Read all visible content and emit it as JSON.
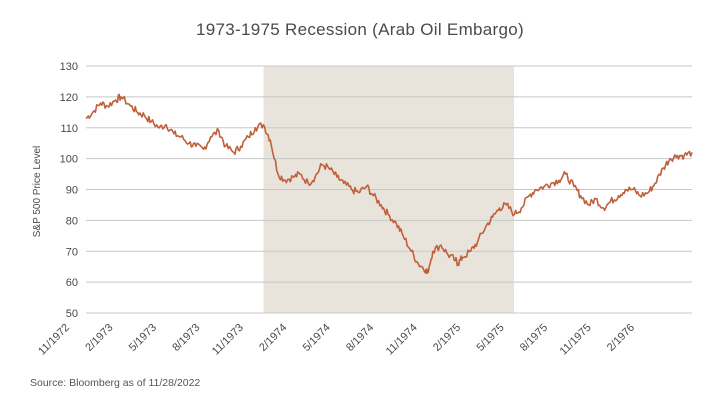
{
  "chart_data": {
    "type": "line",
    "title": "1973-1975 Recession (Arab Oil Embargo)",
    "ylabel": "S&P 500 Price Level",
    "xlabel": "",
    "source": "Source: Bloomberg as of 11/28/2022",
    "ylim": [
      50,
      130
    ],
    "y_ticks": [
      "130",
      "120",
      "110",
      "100",
      "90",
      "80",
      "70",
      "60",
      "50"
    ],
    "x_ticks": [
      "11/1972",
      "2/1973",
      "5/1973",
      "8/1973",
      "11/1973",
      "2/1974",
      "5/1974",
      "8/1974",
      "11/1974",
      "2/1975",
      "5/1975",
      "8/1975",
      "11/1975",
      "2/1976"
    ],
    "x_range": [
      "1972-11-01",
      "1976-03-31"
    ],
    "recession_shading": {
      "start": "1973-11-01",
      "end": "1975-03-31"
    },
    "grid": "horizontal",
    "line_color": "#c0603a",
    "shading_color": "#e8e4dc",
    "series": [
      {
        "x": [
          "1972-11-01",
          "1972-11-15",
          "1972-12-01",
          "1972-12-15",
          "1973-01-01",
          "1973-01-12",
          "1973-02-01",
          "1973-02-15",
          "1973-03-01",
          "1973-03-15",
          "1973-04-01",
          "1973-04-15",
          "1973-05-01",
          "1973-05-15",
          "1973-06-01",
          "1973-06-15",
          "1973-07-01",
          "1973-07-15",
          "1973-08-01",
          "1973-08-15",
          "1973-09-01",
          "1973-09-15",
          "1973-10-01",
          "1973-10-15",
          "1973-11-01",
          "1973-11-15",
          "1973-12-01",
          "1973-12-15",
          "1974-01-01",
          "1974-01-15",
          "1974-02-01",
          "1974-02-15",
          "1974-03-01",
          "1974-03-15",
          "1974-04-01",
          "1974-04-15",
          "1974-05-01",
          "1974-05-15",
          "1974-06-01",
          "1974-06-15",
          "1974-07-01",
          "1974-07-15",
          "1974-08-01",
          "1974-08-15",
          "1974-09-01",
          "1974-09-15",
          "1974-10-01",
          "1974-10-04",
          "1974-10-15",
          "1974-11-01",
          "1974-11-15",
          "1974-12-01",
          "1974-12-06",
          "1974-12-15",
          "1975-01-01",
          "1975-01-15",
          "1975-02-01",
          "1975-02-15",
          "1975-03-01",
          "1975-03-15",
          "1975-04-01",
          "1975-04-15",
          "1975-05-01",
          "1975-05-15",
          "1975-06-01",
          "1975-06-15",
          "1975-07-01",
          "1975-07-15",
          "1975-08-01",
          "1975-08-15",
          "1975-09-01",
          "1975-09-15",
          "1975-10-01",
          "1975-10-15",
          "1975-11-01",
          "1975-11-15",
          "1975-12-01",
          "1975-12-15",
          "1976-01-01",
          "1976-01-15",
          "1976-02-01",
          "1976-02-15",
          "1976-03-01",
          "1976-03-15",
          "1976-03-31"
        ],
        "y": [
          113,
          115,
          118,
          117,
          119,
          120,
          117,
          115,
          114,
          112,
          110,
          111,
          108,
          107,
          105,
          104,
          103,
          107,
          109,
          104,
          102,
          104,
          107,
          110,
          111,
          106,
          95,
          93,
          94,
          95,
          92,
          94,
          98,
          97,
          94,
          92,
          90,
          89,
          91,
          88,
          85,
          82,
          79,
          75,
          70,
          66,
          64,
          63,
          70,
          72,
          69,
          67,
          66,
          68,
          70,
          73,
          78,
          81,
          84,
          85,
          82,
          84,
          88,
          90,
          91,
          92,
          93,
          95,
          91,
          88,
          85,
          87,
          84,
          86,
          88,
          90,
          90,
          88,
          89,
          92,
          97,
          100,
          101,
          101,
          102
        ]
      }
    ]
  }
}
